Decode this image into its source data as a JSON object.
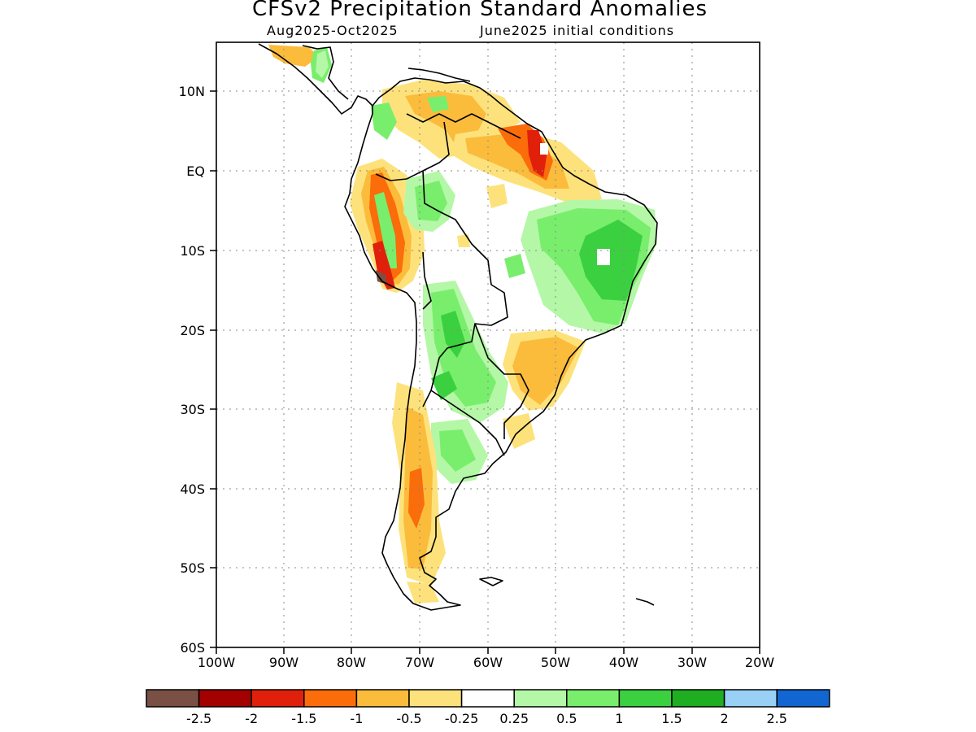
{
  "map": {
    "title": "CFSv2 Precipitation Standard Anomalies",
    "subtitle_left": "Aug2025-Oct2025",
    "subtitle_right": "June2025 initial conditions",
    "lat_labels": [
      "10N",
      "EQ",
      "10S",
      "20S",
      "30S",
      "40S",
      "50S",
      "60S"
    ],
    "lon_labels": [
      "100W",
      "90W",
      "80W",
      "70W",
      "60W",
      "50W",
      "40W",
      "30W",
      "20W"
    ],
    "lat_values": [
      10,
      0,
      -10,
      -20,
      -30,
      -40,
      -50,
      -60
    ],
    "lon_values": [
      -100,
      -90,
      -80,
      -70,
      -60,
      -50,
      -40,
      -30,
      -20
    ],
    "extent": {
      "lon": [
        -100,
        -20
      ],
      "lat": [
        -60,
        16
      ]
    },
    "gridlines": true
  },
  "colorbar": {
    "colors": [
      "#7a5044",
      "#a30000",
      "#e0200b",
      "#fb6c0a",
      "#fbbc3c",
      "#fde27c",
      "#ffffff",
      "#b4f7a6",
      "#79ee6d",
      "#3bd040",
      "#1fad22",
      "#98d0f6",
      "#1266d2"
    ],
    "labels": [
      "-2.5",
      "-2",
      "-1.5",
      "-1",
      "-0.5",
      "-0.25",
      "0.25",
      "0.5",
      "1",
      "1.5",
      "2",
      "2.5"
    ]
  }
}
